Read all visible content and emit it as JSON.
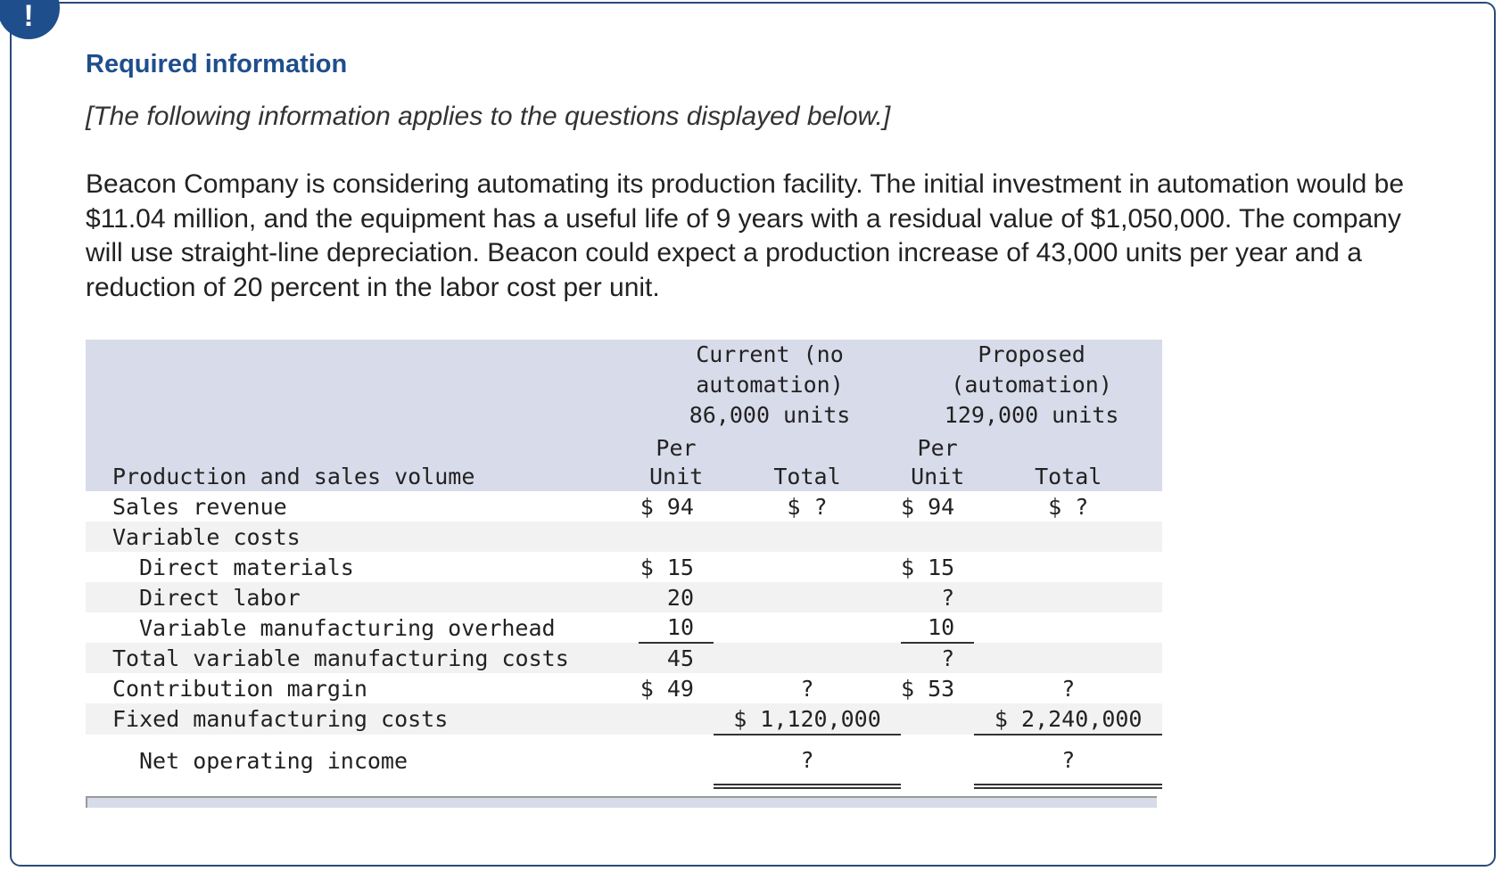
{
  "header": {
    "title": "Required information",
    "subtitle": "[The following information applies to the questions displayed below.]"
  },
  "paragraph": "Beacon Company is considering automating its production facility. The initial investment in automation would be $11.04 million, and the equipment has a useful life of 9 years with a residual value of $1,050,000. The company will use straight-line depreciation. Beacon could expect a production increase of 43,000 units per year and a reduction of 20 percent in the labor cost per unit.",
  "table": {
    "groups": [
      {
        "name": "Current (no automation)",
        "units": "86,000 units"
      },
      {
        "name": "Proposed (automation)",
        "units": "129,000 units"
      }
    ],
    "columns": [
      "Production and sales volume",
      "Per Unit",
      "Total",
      "Per Unit",
      "Total"
    ],
    "rows": [
      [
        "Sales revenue",
        "$ 94",
        "$ ?",
        "$ 94",
        "$ ?"
      ],
      [
        "Variable costs",
        null,
        null,
        null,
        null
      ],
      [
        "Direct materials",
        "$ 15",
        null,
        "$ 15",
        null
      ],
      [
        "Direct labor",
        "20",
        null,
        "?",
        null
      ],
      [
        "Variable manufacturing overhead",
        "10",
        null,
        "10",
        null
      ],
      [
        "Total variable manufacturing costs",
        "45",
        null,
        "?",
        null
      ],
      [
        "Contribution margin",
        "$ 49",
        "?",
        "$ 53",
        "?"
      ],
      [
        "Fixed manufacturing costs",
        null,
        "$ 1,120,000",
        null,
        "$ 2,240,000"
      ],
      [
        "Net operating income",
        null,
        "?",
        null,
        "?"
      ]
    ]
  }
}
